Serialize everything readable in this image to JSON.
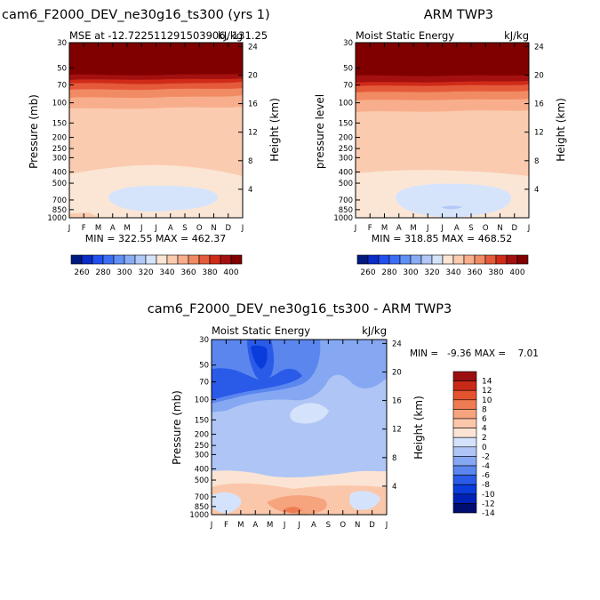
{
  "colors": {
    "mse_levels": [
      "#001a80",
      "#0a2cc8",
      "#2050f0",
      "#3c6ef5",
      "#6090f5",
      "#8aacf5",
      "#b2c9f7",
      "#d6e4fb",
      "#fbe6d5",
      "#fbcbb0",
      "#f8ae8c",
      "#f18b63",
      "#e55a3a",
      "#cf2b18",
      "#a41010",
      "#800000"
    ],
    "diff_levels": [
      "#000e70",
      "#0022b4",
      "#0a3cdc",
      "#2a5ae8",
      "#5a86ee",
      "#86a8f2",
      "#aec5f5",
      "#d4e3fb",
      "#fbe4d4",
      "#fbc7aa",
      "#f6a47e",
      "#ef7c52",
      "#e55230",
      "#c92a18",
      "#9a1010"
    ]
  },
  "chart_data": [
    {
      "type": "contour",
      "title_left": "cam6_F2000_DEV_ne30g16_ts300 (yrs 1)",
      "subtitle_left": "MSE at -12.722511291503906, 131.25",
      "subtitle_right": "kJ/kg",
      "ylabel": "Pressure (mb)",
      "ylabel_right": "Height (km)",
      "x_ticks": [
        "J",
        "F",
        "M",
        "A",
        "M",
        "J",
        "J",
        "A",
        "S",
        "O",
        "N",
        "D",
        "J"
      ],
      "y_ticks": [
        30,
        50,
        70,
        100,
        150,
        200,
        250,
        300,
        400,
        500,
        700,
        850,
        1000
      ],
      "height_ticks": [
        24,
        20,
        16,
        12,
        8,
        4
      ],
      "stats": "MIN = 322.55 MAX = 462.37",
      "min": 322.55,
      "max": 462.37
    },
    {
      "type": "contour",
      "title_left": "",
      "title_right": "ARM TWP3",
      "subtitle_left": "Moist Static Energy",
      "subtitle_right": "kJ/kg",
      "ylabel": "pressure level",
      "ylabel_right": "Height (km)",
      "x_ticks": [
        "J",
        "F",
        "M",
        "A",
        "M",
        "J",
        "J",
        "A",
        "S",
        "O",
        "N",
        "D",
        "J"
      ],
      "y_ticks": [
        30,
        50,
        70,
        100,
        150,
        200,
        250,
        300,
        400,
        500,
        700,
        850,
        1000
      ],
      "height_ticks": [
        24,
        20,
        16,
        12,
        8,
        4
      ],
      "stats": "MIN = 318.85 MAX = 468.52",
      "min": 318.85,
      "max": 468.52
    },
    {
      "type": "contour",
      "title": "cam6_F2000_DEV_ne30g16_ts300 - ARM TWP3",
      "subtitle_left": "Moist Static Energy",
      "subtitle_right": "kJ/kg",
      "ylabel": "Pressure (mb)",
      "ylabel_right": "Height (km)",
      "x_ticks": [
        "J",
        "F",
        "M",
        "A",
        "M",
        "J",
        "J",
        "A",
        "S",
        "O",
        "N",
        "D",
        "J"
      ],
      "y_ticks": [
        30,
        50,
        70,
        100,
        150,
        200,
        250,
        300,
        400,
        500,
        700,
        850,
        1000
      ],
      "height_ticks": [
        24,
        20,
        16,
        12,
        8,
        4
      ],
      "stats": "MIN =   -9.36 MAX =    7.01",
      "min": -9.36,
      "max": 7.01
    }
  ],
  "colorbar_mse": {
    "labels": [
      "260",
      "280",
      "300",
      "320",
      "340",
      "360",
      "380",
      "400"
    ]
  },
  "colorbar_diff": {
    "labels": [
      "14",
      "12",
      "10",
      "8",
      "6",
      "4",
      "2",
      "0",
      "-2",
      "-4",
      "-6",
      "-8",
      "-10",
      "-12",
      "-14"
    ]
  }
}
